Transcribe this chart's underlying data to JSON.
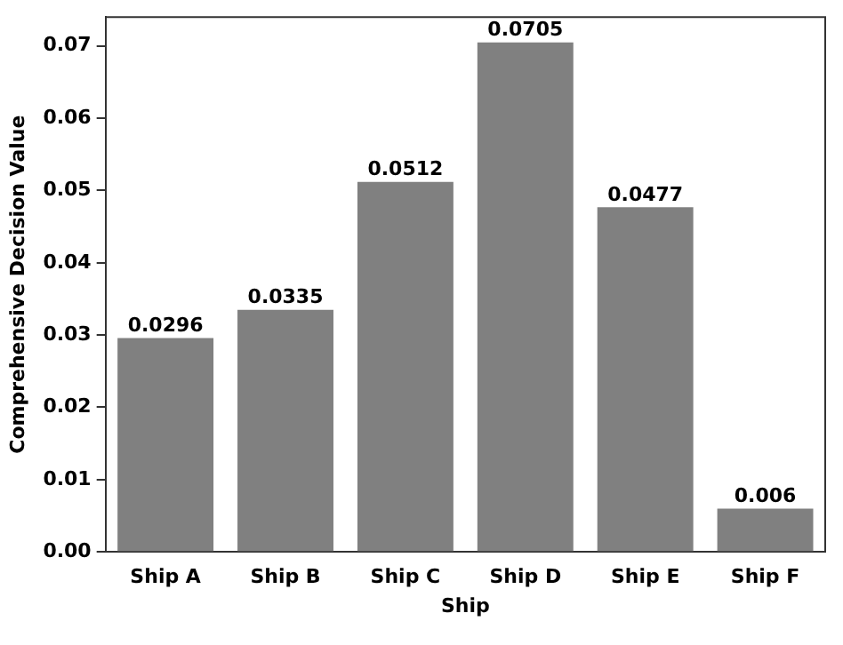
{
  "chart_data": {
    "type": "bar",
    "xlabel": "Ship",
    "ylabel": "Comprehensive Decision Value",
    "categories": [
      "Ship A",
      "Ship B",
      "Ship C",
      "Ship D",
      "Ship E",
      "Ship F"
    ],
    "values": [
      0.0296,
      0.0335,
      0.0512,
      0.0705,
      0.0477,
      0.006
    ],
    "color": "#808080",
    "ylim": [
      0,
      0.074
    ],
    "yticks": [
      {
        "value": 0,
        "label": "0.00"
      },
      0.01,
      0.02,
      0.03,
      0.04,
      0.05,
      0.06,
      0.07
    ],
    "data_labels": true,
    "grid": false,
    "legend": false
  }
}
